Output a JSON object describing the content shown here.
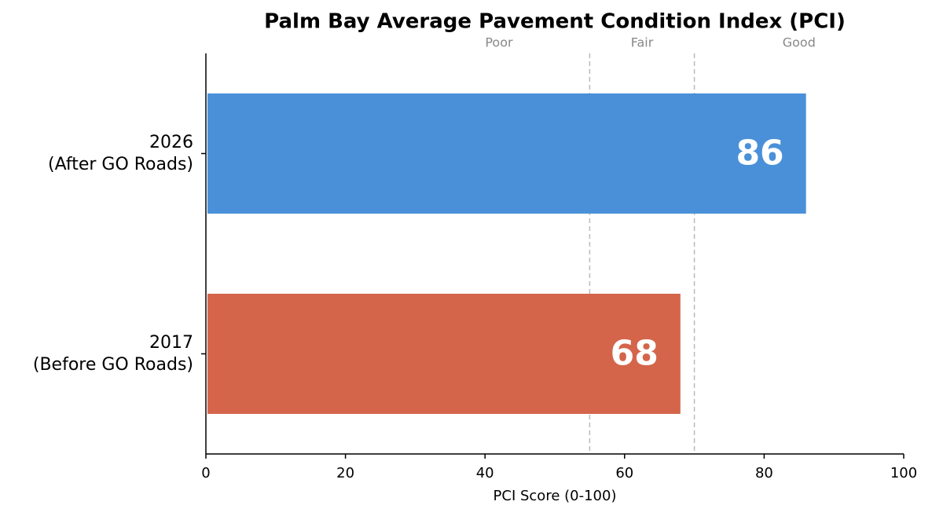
{
  "chart_data": {
    "type": "barh",
    "title": "Palm Bay Average Pavement Condition Index (PCI)",
    "xlabel": "PCI Score (0-100)",
    "categories": [
      "2017\n(Before GO Roads)",
      "2026\n(After GO Roads)"
    ],
    "values": [
      68,
      86
    ],
    "colors": [
      "#d4654b",
      "#4a90d9"
    ],
    "xlim": [
      0,
      100
    ],
    "xticks": [
      0,
      20,
      40,
      60,
      80,
      100
    ],
    "thresholds": [
      55,
      70
    ],
    "zone_labels": [
      {
        "text": "Poor",
        "x": 42
      },
      {
        "text": "Fair",
        "x": 62.5
      },
      {
        "text": "Good",
        "x": 85
      }
    ]
  }
}
